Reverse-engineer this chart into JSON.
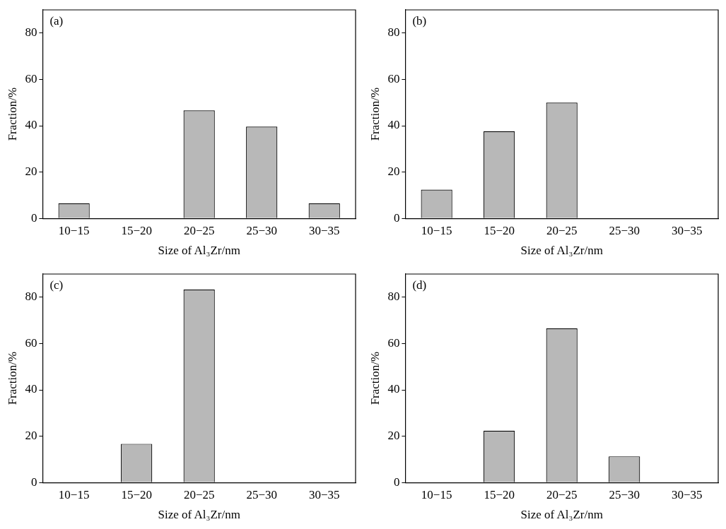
{
  "chart_data": [
    {
      "type": "bar",
      "title": "(a)",
      "xlabel": "Size of Al₃Zr/nm",
      "ylabel": "Fraction/%",
      "categories": [
        "10−15",
        "15−20",
        "20−25",
        "25−30",
        "30−35"
      ],
      "values": [
        6.5,
        0,
        46.6,
        39.6,
        6.5
      ],
      "color": "#b8b8b8",
      "ylim": [
        0,
        90
      ],
      "yticks": [
        0,
        20,
        40,
        60,
        80
      ],
      "grid": false,
      "legend": false
    },
    {
      "type": "bar",
      "title": "(b)",
      "xlabel": "Size of Al₃Zr/nm",
      "ylabel": "Fraction/%",
      "categories": [
        "10−15",
        "15−20",
        "20−25",
        "25−30",
        "30−35"
      ],
      "values": [
        12.4,
        37.6,
        50.0,
        0,
        0
      ],
      "color": "#b8b8b8",
      "ylim": [
        0,
        90
      ],
      "yticks": [
        0,
        20,
        40,
        60,
        80
      ],
      "grid": false,
      "legend": false
    },
    {
      "type": "bar",
      "title": "(c)",
      "xlabel": "Size of Al₃Zr/nm",
      "ylabel": "Fraction/%",
      "categories": [
        "10−15",
        "15−20",
        "20−25",
        "25−30",
        "30−35"
      ],
      "values": [
        0,
        16.7,
        83.3,
        0,
        0
      ],
      "color": "#b8b8b8",
      "ylim": [
        0,
        90
      ],
      "yticks": [
        0,
        20,
        40,
        60,
        80
      ],
      "grid": false,
      "legend": false
    },
    {
      "type": "bar",
      "title": "(d)",
      "xlabel": "Size of Al₃Zr/nm",
      "ylabel": "Fraction/%",
      "categories": [
        "10−15",
        "15−20",
        "20−25",
        "25−30",
        "30−35"
      ],
      "values": [
        0,
        22.4,
        66.5,
        11.3,
        0
      ],
      "color": "#b8b8b8",
      "ylim": [
        0,
        90
      ],
      "yticks": [
        0,
        20,
        40,
        60,
        80
      ],
      "grid": false,
      "legend": false
    }
  ]
}
